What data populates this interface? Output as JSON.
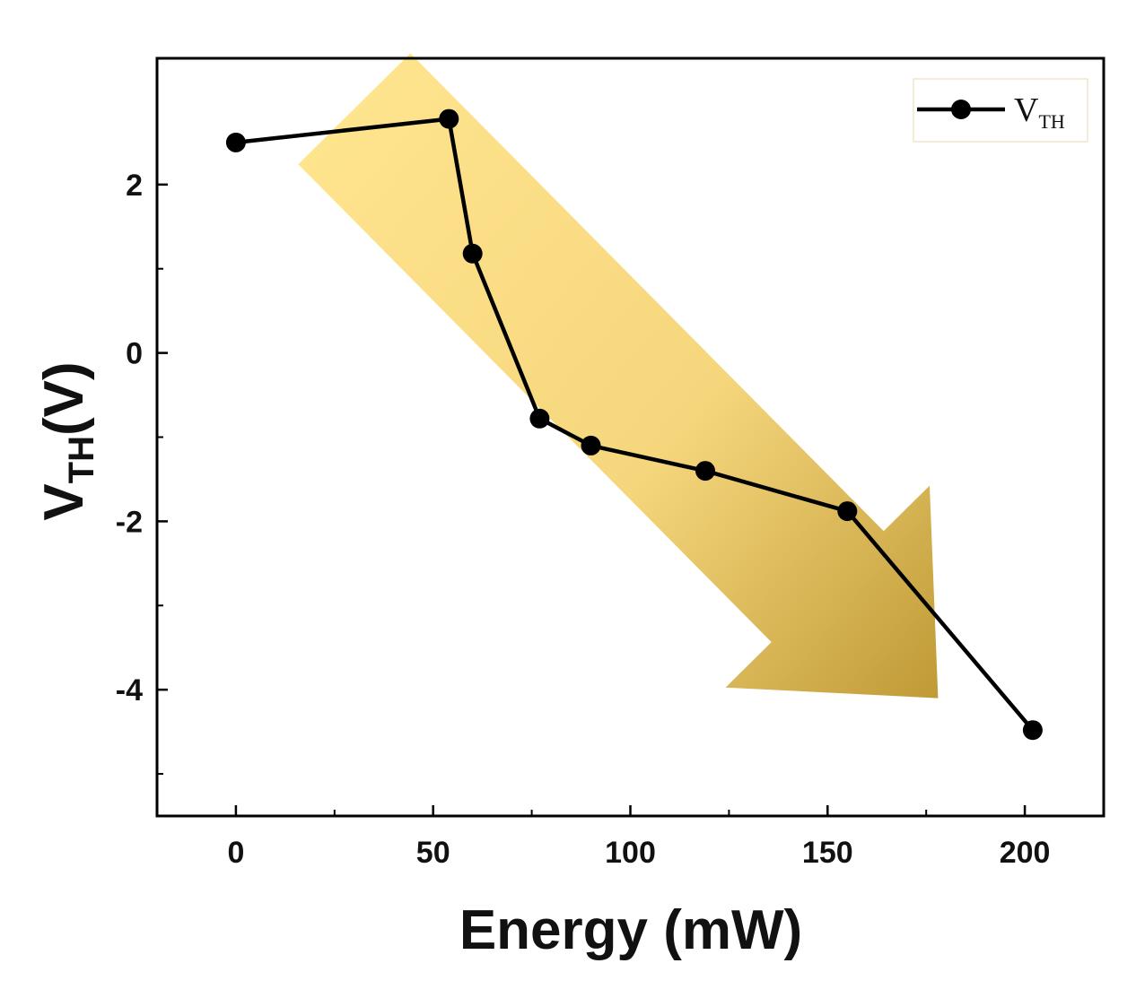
{
  "chart_data": {
    "type": "line",
    "title": "",
    "xlabel": "Energy (mW)",
    "ylabel_main": "V",
    "ylabel_sub": "TH",
    "ylabel_tail": "(V)",
    "xlim": [
      -20,
      220
    ],
    "ylim": [
      -5.5,
      3.5
    ],
    "xticks": [
      0,
      50,
      100,
      150,
      200
    ],
    "xtick_labels": [
      "0",
      "50",
      "100",
      "150",
      "200"
    ],
    "xminor_ticks": [
      25,
      75,
      125,
      175
    ],
    "yticks": [
      2,
      0,
      -2,
      -4
    ],
    "ytick_labels": [
      "2",
      "0",
      "-2",
      "-4"
    ],
    "yminor_ticks": [
      1,
      -1,
      -3,
      -5
    ],
    "series": [
      {
        "name": "VTH",
        "x": [
          0,
          54,
          60,
          77,
          90,
          119,
          155,
          202
        ],
        "y": [
          2.5,
          2.78,
          1.18,
          -0.78,
          -1.1,
          -1.4,
          -1.88,
          -4.48
        ]
      }
    ],
    "legend": {
      "main": "V",
      "sub": "TH",
      "position": "top-right"
    },
    "arrow_annotation": {
      "from": [
        30,
        2.9
      ],
      "to": [
        178,
        -4.1
      ],
      "color_start": "#ffdf7a",
      "color_end": "#b88f22"
    }
  }
}
